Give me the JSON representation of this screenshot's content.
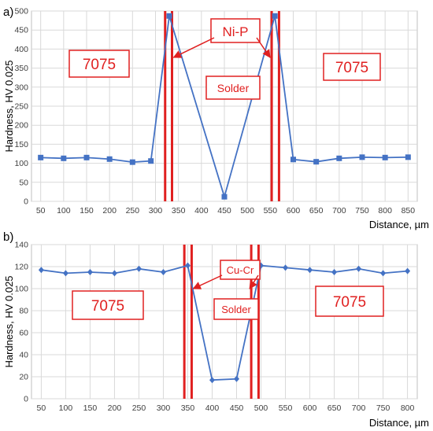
{
  "colors": {
    "series": "#4472C4",
    "boundary": "#E02020",
    "label_border": "#E02020",
    "label_text": "#E02020",
    "grid": "#D9D9D9",
    "axis_text": "#404040"
  },
  "chart_data": [
    {
      "panel_label": "a)",
      "type": "line",
      "title": "",
      "xlabel": "Distance, µm",
      "ylabel": "Hardness, HV 0.025",
      "xlim": [
        30,
        870
      ],
      "ylim": [
        0,
        500
      ],
      "xticks": [
        50,
        100,
        150,
        200,
        250,
        300,
        350,
        400,
        450,
        500,
        550,
        600,
        650,
        700,
        750,
        800,
        850
      ],
      "yticks": [
        0,
        50,
        100,
        150,
        200,
        250,
        300,
        350,
        400,
        450,
        500
      ],
      "grid": true,
      "marker": "square",
      "series": [
        {
          "x": [
            50,
            100,
            150,
            200,
            250,
            290,
            330,
            450,
            560,
            600,
            650,
            700,
            750,
            800,
            850
          ],
          "y": [
            115,
            113,
            115,
            111,
            103,
            106,
            487,
            12,
            487,
            110,
            104,
            113,
            116,
            115,
            116
          ]
        }
      ],
      "boundaries": [
        {
          "x": 321
        },
        {
          "x": 336
        },
        {
          "x": 553
        },
        {
          "x": 569
        }
      ],
      "annotations": {
        "left_region": "7075",
        "right_region": "7075",
        "middle_region": "Solder",
        "layer": "Ni-P",
        "layer_arrow_targets": [
          {
            "x": 336,
            "y": 378
          },
          {
            "x": 553,
            "y": 378
          }
        ]
      }
    },
    {
      "panel_label": "b)",
      "type": "line",
      "title": "",
      "xlabel": "Distance, µm",
      "ylabel": "Hardness, HV 0.025",
      "xlim": [
        30,
        820
      ],
      "ylim": [
        0,
        140
      ],
      "xticks": [
        50,
        100,
        150,
        200,
        250,
        300,
        350,
        400,
        450,
        500,
        550,
        600,
        650,
        700,
        750,
        800
      ],
      "yticks": [
        0,
        20,
        40,
        60,
        80,
        100,
        120,
        140
      ],
      "grid": true,
      "marker": "diamond",
      "series": [
        {
          "x": [
            50,
            100,
            150,
            200,
            250,
            300,
            350,
            400,
            450,
            500,
            550,
            600,
            650,
            700,
            750,
            800
          ],
          "y": [
            117,
            114,
            115,
            114,
            118,
            115,
            121,
            17,
            18,
            121,
            119,
            117,
            115,
            118,
            114,
            116
          ]
        }
      ],
      "boundaries": [
        {
          "x": 343
        },
        {
          "x": 358
        },
        {
          "x": 480
        },
        {
          "x": 495
        }
      ],
      "annotations": {
        "left_region": "7075",
        "right_region": "7075",
        "middle_region": "Solder",
        "layer": "Cu-Cr",
        "layer_arrow_targets": [
          {
            "x": 358,
            "y": 100
          },
          {
            "x": 480,
            "y": 100
          }
        ]
      }
    }
  ]
}
